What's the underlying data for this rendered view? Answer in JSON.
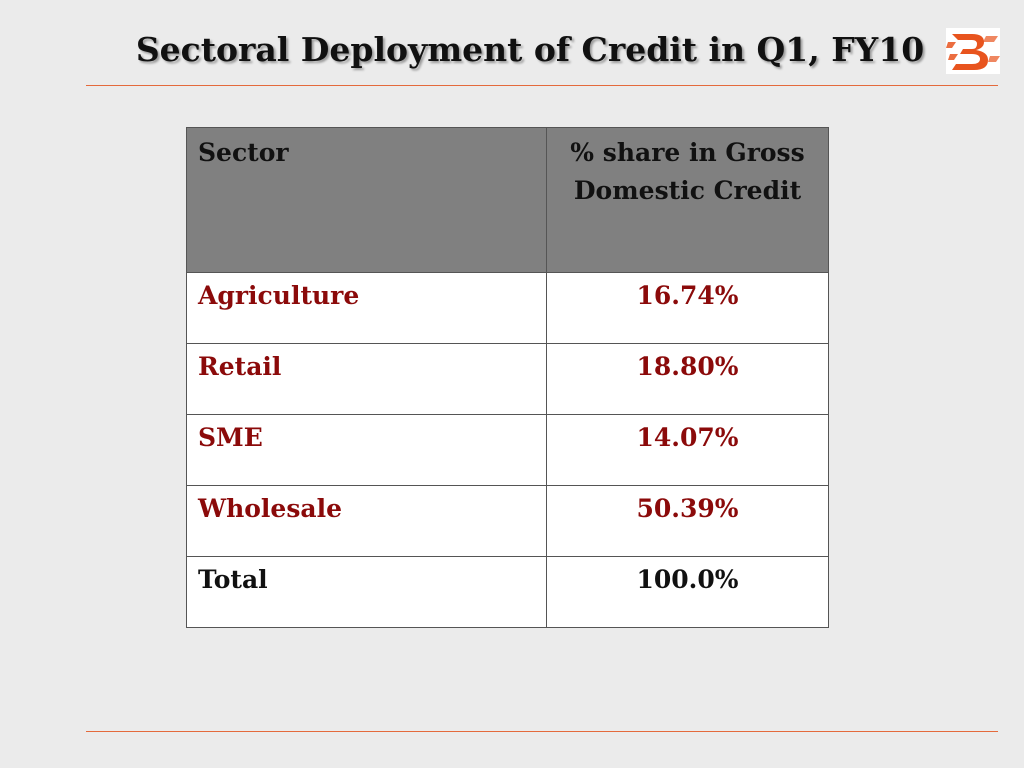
{
  "slide": {
    "title": "Sectoral Deployment of Credit in Q1, FY10"
  },
  "logo": {
    "icon": "bank-of-baroda-logo-icon",
    "color": "#e8541e"
  },
  "table": {
    "headers": {
      "sector": "Sector",
      "share": "% share in Gross Domestic Credit"
    },
    "rows": [
      {
        "sector": "Agriculture",
        "share": "16.74%"
      },
      {
        "sector": "Retail",
        "share": "18.80%"
      },
      {
        "sector": "SME",
        "share": "14.07%"
      },
      {
        "sector": "Wholesale",
        "share": "50.39%"
      },
      {
        "sector": "Total",
        "share": "100.0%"
      }
    ]
  },
  "colors": {
    "row_text": "#8b0a0a",
    "total_text": "#111111",
    "rule": "#e46a3c",
    "header_bg": "#808080"
  }
}
